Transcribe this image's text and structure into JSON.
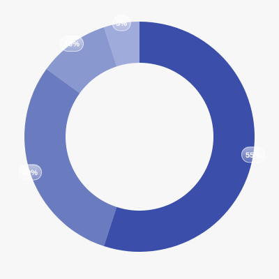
{
  "chart_data": {
    "type": "pie",
    "donut": true,
    "categories": [],
    "values": [
      55,
      30,
      10,
      5
    ],
    "labels": [
      "55%",
      "30%",
      "10%",
      "5%"
    ],
    "colors": [
      "#3a4eaa",
      "#6a7bbf",
      "#8a98d0",
      "#9fabda"
    ],
    "title": "",
    "legend": "none"
  }
}
